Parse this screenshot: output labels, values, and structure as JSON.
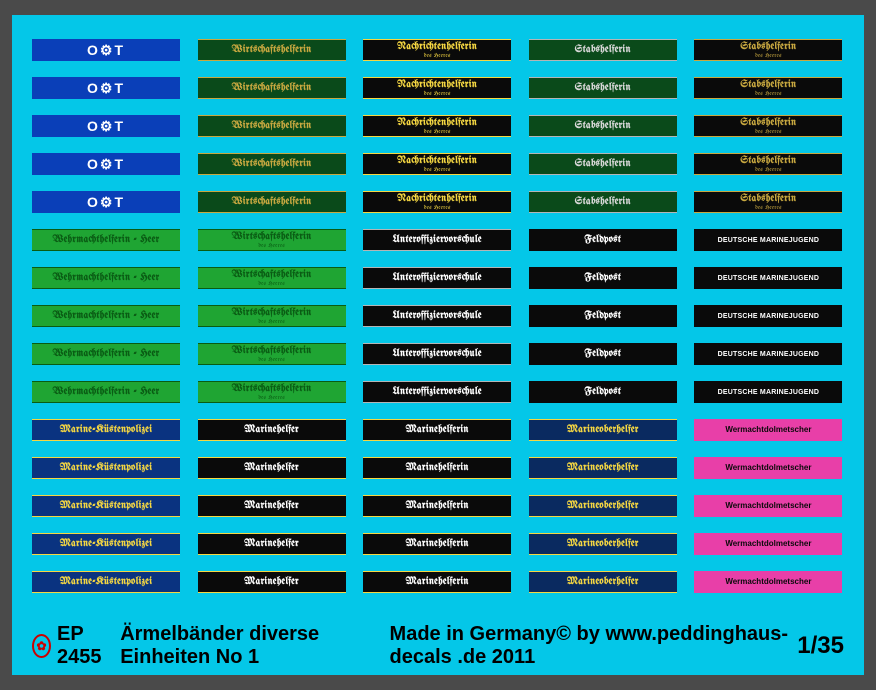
{
  "footer": {
    "code": "EP 2455",
    "title": "Ärmelbänder diverse Einheiten No 1",
    "made": "Made in Germany© by www.peddinghaus-decals .de 2011",
    "scale": "1/35"
  },
  "columns": [
    [
      {
        "text": "O⚙T",
        "sub": "",
        "bg": "#0a3fb8",
        "fg": "#ffffff",
        "border": "#0a3fb8",
        "gothic": false,
        "symbol": true
      },
      {
        "text": "Wehrmachthelferin - Heer",
        "sub": "",
        "bg": "#1fa533",
        "fg": "#0a5c14",
        "border": "#0a5c14",
        "gothic": true
      },
      {
        "text": "Marine-Küstenpolizei",
        "sub": "",
        "bg": "#0a3380",
        "fg": "#f5d742",
        "border": "#f5d742",
        "gothic": true
      }
    ],
    [
      {
        "text": "Wirtschaftshelferin",
        "sub": "",
        "bg": "#0a4a1a",
        "fg": "#c8a840",
        "border": "#c8a840",
        "gothic": true
      },
      {
        "text": "Wirtschaftshelferin",
        "sub": "des Heeres",
        "bg": "#1fa533",
        "fg": "#0a5c14",
        "border": "#0a5c14",
        "gothic": true
      },
      {
        "text": "Marinehelfer",
        "sub": "",
        "bg": "#0a0a0a",
        "fg": "#ffffff",
        "border": "#f5d742",
        "gothic": true
      }
    ],
    [
      {
        "text": "Nachrichtenhelferin",
        "sub": "des Heeres",
        "bg": "#0a0a0a",
        "fg": "#f5d742",
        "border": "#f5d742",
        "gothic": true
      },
      {
        "text": "Unteroffiziervorschule",
        "sub": "",
        "bg": "#0a0a0a",
        "fg": "#ffffff",
        "border": "#b5b5b5",
        "gothic": true
      },
      {
        "text": "Marinehelferin",
        "sub": "",
        "bg": "#0a0a0a",
        "fg": "#ffffff",
        "border": "#f5d742",
        "gothic": true
      }
    ],
    [
      {
        "text": "Stabshelferin",
        "sub": "",
        "bg": "#0a4a1a",
        "fg": "#d8d8d8",
        "border": "#b5b5b5",
        "gothic": true
      },
      {
        "text": "Feldpost",
        "sub": "",
        "bg": "#0a0a0a",
        "fg": "#ffffff",
        "border": "#0a0a0a",
        "gothic": true
      },
      {
        "text": "Marineoberhelfer",
        "sub": "",
        "bg": "#0a2a60",
        "fg": "#f5d742",
        "border": "#f5d742",
        "gothic": true
      }
    ],
    [
      {
        "text": "Stabshelferin",
        "sub": "des Heeres",
        "bg": "#0a0a0a",
        "fg": "#c8a840",
        "border": "#c8a840",
        "gothic": true
      },
      {
        "text": "DEUTSCHE MARINEJUGEND",
        "sub": "",
        "bg": "#0a0a0a",
        "fg": "#ffffff",
        "border": "#0a0a0a",
        "gothic": false
      },
      {
        "text": "Wermachtdolmetscher",
        "sub": "",
        "bg": "#e83fa8",
        "fg": "#0a0a0a",
        "border": "#e83fa8",
        "gothic": false
      }
    ]
  ]
}
